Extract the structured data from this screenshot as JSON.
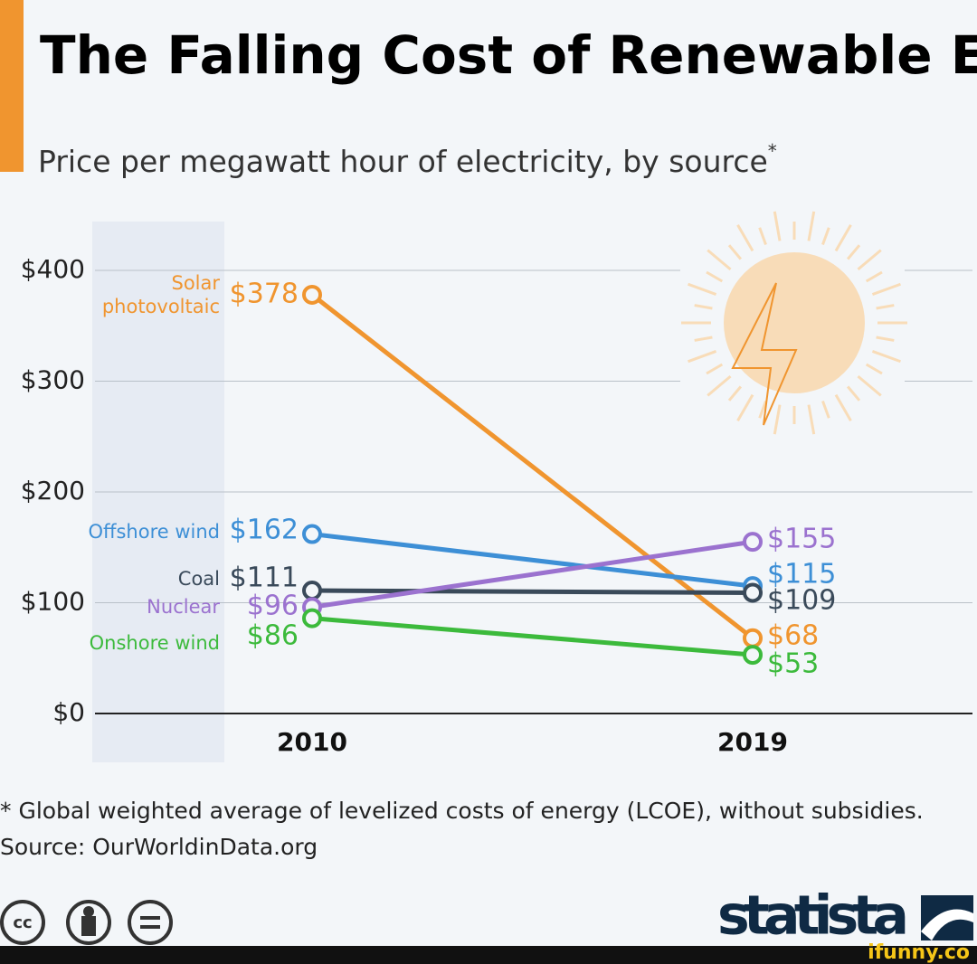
{
  "chart_data": {
    "type": "line",
    "title": "The Falling Cost of Renewable Energy",
    "subtitle": "Price per megawatt hour of electricity, by source",
    "subtitle_marker": "*",
    "categories": [
      "2010",
      "2019"
    ],
    "series": [
      {
        "name": "Solar photovoltaic",
        "color": "#f0952f",
        "values": [
          378,
          68
        ],
        "value_labels": [
          "$378",
          "$68"
        ]
      },
      {
        "name": "Offshore wind",
        "color": "#3d8fd6",
        "values": [
          162,
          115
        ],
        "value_labels": [
          "$162",
          "$115"
        ]
      },
      {
        "name": "Coal",
        "color": "#3a4a5a",
        "values": [
          111,
          109
        ],
        "value_labels": [
          "$111",
          "$109"
        ]
      },
      {
        "name": "Nuclear",
        "color": "#9b72cf",
        "values": [
          96,
          155
        ],
        "value_labels": [
          "$96",
          "$155"
        ]
      },
      {
        "name": "Onshore wind",
        "color": "#3cba3c",
        "values": [
          86,
          53
        ],
        "value_labels": [
          "$86",
          "$53"
        ]
      }
    ],
    "ylim": [
      0,
      400
    ],
    "yticks": [
      {
        "value": 0,
        "label": "$0"
      },
      {
        "value": 100,
        "label": "$100"
      },
      {
        "value": 200,
        "label": "$200"
      },
      {
        "value": 300,
        "label": "$300"
      },
      {
        "value": 400,
        "label": "$400"
      }
    ],
    "grid": true,
    "footnote": "* Global weighted average of levelized costs of energy (LCOE), without subsidies.",
    "source": "Source: OurWorldinData.org",
    "license_icon": "cc",
    "brand": "statista",
    "watermark": "ifunny.co"
  }
}
